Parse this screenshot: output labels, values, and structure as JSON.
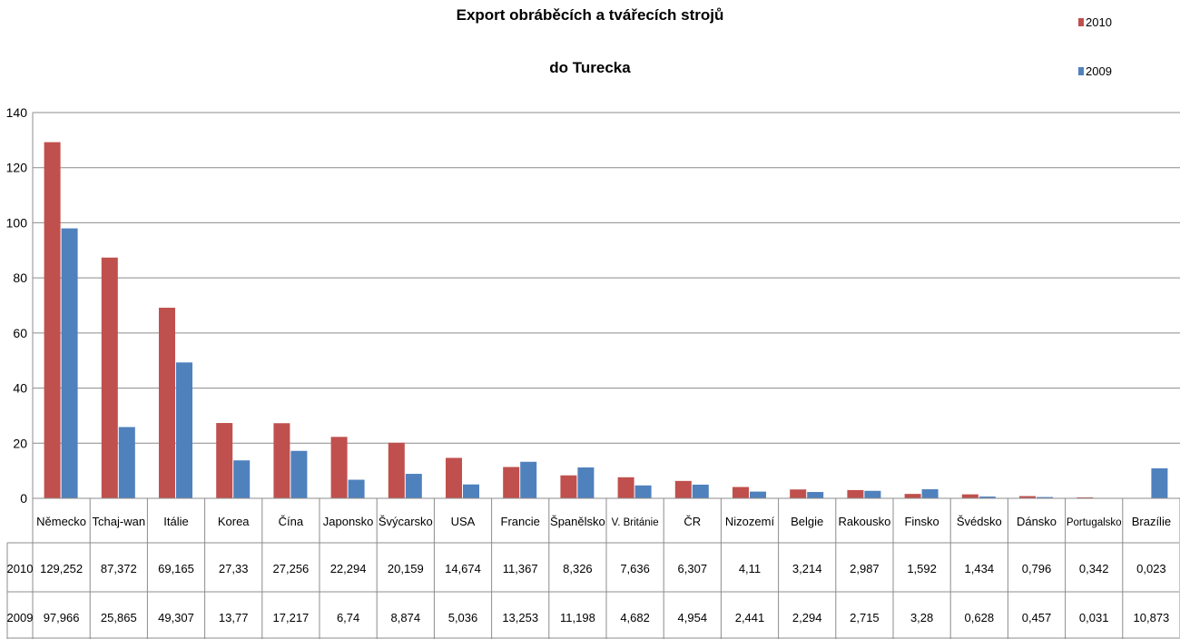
{
  "chart_data": {
    "type": "bar",
    "title": "Export obráběcích a tvářecích strojů",
    "subtitle": "do Turecka",
    "ylim": [
      0,
      140
    ],
    "yticks": [
      0,
      20,
      40,
      60,
      80,
      100,
      120,
      140
    ],
    "grid": true,
    "legend_position": "top-right",
    "categories": [
      "Německo",
      "Tchaj-wan",
      "Itálie",
      "Korea",
      "Čína",
      "Japonsko",
      "Švýcarsko",
      "USA",
      "Francie",
      "Španělsko",
      "V. Británie",
      "ČR",
      "Nizozemí",
      "Belgie",
      "Rakousko",
      "Finsko",
      "Švédsko",
      "Dánsko",
      "Portugalsko",
      "Brazílie"
    ],
    "series": [
      {
        "name": "2010",
        "color": "#c0504d",
        "values": [
          129.252,
          87.372,
          69.165,
          27.33,
          27.256,
          22.294,
          20.159,
          14.674,
          11.367,
          8.326,
          7.636,
          6.307,
          4.11,
          3.214,
          2.987,
          1.592,
          1.434,
          0.796,
          0.342,
          0.023
        ],
        "labels": [
          "129,252",
          "87,372",
          "69,165",
          "27,33",
          "27,256",
          "22,294",
          "20,159",
          "14,674",
          "11,367",
          "8,326",
          "7,636",
          "6,307",
          "4,11",
          "3,214",
          "2,987",
          "1,592",
          "1,434",
          "0,796",
          "0,342",
          "0,023"
        ]
      },
      {
        "name": "2009",
        "color": "#4f81bd",
        "values": [
          97.966,
          25.865,
          49.307,
          13.77,
          17.217,
          6.74,
          8.874,
          5.036,
          13.253,
          11.198,
          4.682,
          4.954,
          2.441,
          2.294,
          2.715,
          3.28,
          0.628,
          0.457,
          0.031,
          10.873
        ],
        "labels": [
          "97,966",
          "25,865",
          "49,307",
          "13,77",
          "17,217",
          "6,74",
          "8,874",
          "5,036",
          "13,253",
          "11,198",
          "4,682",
          "4,954",
          "2,441",
          "2,294",
          "2,715",
          "3,28",
          "0,628",
          "0,457",
          "0,031",
          "10,873"
        ]
      }
    ]
  }
}
